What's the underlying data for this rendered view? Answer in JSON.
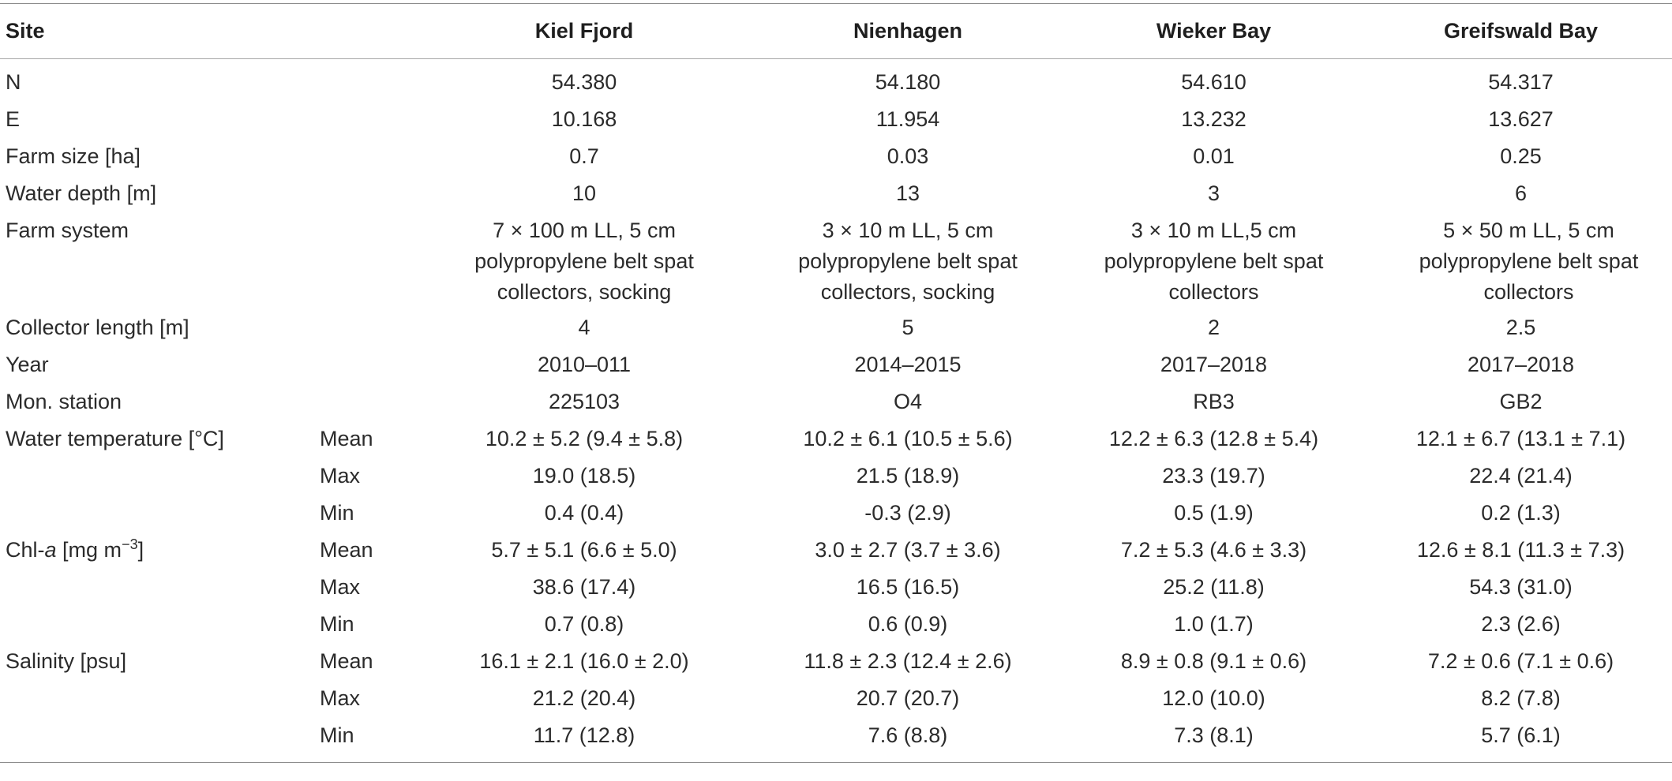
{
  "table": {
    "headers": {
      "site": "Site",
      "stat": "",
      "kiel": "Kiel Fjord",
      "nienhagen": "Nienhagen",
      "wieker": "Wieker Bay",
      "greifswald": "Greifswald Bay"
    },
    "rows": {
      "n": {
        "label": "N",
        "kiel": "54.380",
        "nienhagen": "54.180",
        "wieker": "54.610",
        "greifswald": "54.317"
      },
      "e": {
        "label": "E",
        "kiel": "10.168",
        "nienhagen": "11.954",
        "wieker": "13.232",
        "greifswald": "13.627"
      },
      "farm_size": {
        "label": "Farm size [ha]",
        "kiel": "0.7",
        "nienhagen": "0.03",
        "wieker": "0.01",
        "greifswald": "0.25"
      },
      "water_depth": {
        "label": "Water depth [m]",
        "kiel": "10",
        "nienhagen": "13",
        "wieker": "3",
        "greifswald": "6"
      },
      "farm_system": {
        "label": "Farm system",
        "kiel": "7 × 100 m LL, 5 cm polypropylene belt spat collectors, socking",
        "nienhagen": "3 × 10 m LL, 5 cm polypropylene belt spat collectors, socking",
        "wieker": "3 × 10 m LL,5 cm polypropylene belt spat collectors",
        "greifswald": "5 × 50 m LL, 5 cm polypropylene belt spat collectors"
      },
      "collector_length": {
        "label": "Collector length [m]",
        "kiel": "4",
        "nienhagen": "5",
        "wieker": "2",
        "greifswald": "2.5"
      },
      "year": {
        "label": "Year",
        "kiel": "2010–011",
        "nienhagen": "2014–2015",
        "wieker": "2017–2018",
        "greifswald": "2017–2018"
      },
      "mon_station": {
        "label": "Mon. station",
        "kiel": "225103",
        "nienhagen": "O4",
        "wieker": "RB3",
        "greifswald": "GB2"
      },
      "water_temp": {
        "label": "Water temperature [°C]",
        "mean": {
          "stat": "Mean",
          "kiel": "10.2 ± 5.2 (9.4 ± 5.8)",
          "nienhagen": "10.2 ± 6.1 (10.5 ± 5.6)",
          "wieker": "12.2 ± 6.3 (12.8 ± 5.4)",
          "greifswald": "12.1 ± 6.7 (13.1 ± 7.1)"
        },
        "max": {
          "stat": "Max",
          "kiel": "19.0 (18.5)",
          "nienhagen": "21.5 (18.9)",
          "wieker": "23.3 (19.7)",
          "greifswald": "22.4 (21.4)"
        },
        "min": {
          "stat": "Min",
          "kiel": "0.4 (0.4)",
          "nienhagen": "-0.3 (2.9)",
          "wieker": "0.5 (1.9)",
          "greifswald": "0.2 (1.3)"
        }
      },
      "chla": {
        "label_prefix": "Chl-",
        "label_italic": "a",
        "label_unit": " [mg m",
        "label_exp": "−3",
        "label_close": "]",
        "mean": {
          "stat": "Mean",
          "kiel": "5.7 ± 5.1 (6.6 ± 5.0)",
          "nienhagen": "3.0 ± 2.7 (3.7 ± 3.6)",
          "wieker": "7.2 ± 5.3 (4.6 ± 3.3)",
          "greifswald": "12.6 ± 8.1 (11.3 ± 7.3)"
        },
        "max": {
          "stat": "Max",
          "kiel": "38.6 (17.4)",
          "nienhagen": "16.5 (16.5)",
          "wieker": "25.2 (11.8)",
          "greifswald": "54.3 (31.0)"
        },
        "min": {
          "stat": "Min",
          "kiel": "0.7 (0.8)",
          "nienhagen": "0.6 (0.9)",
          "wieker": "1.0 (1.7)",
          "greifswald": "2.3 (2.6)"
        }
      },
      "salinity": {
        "label": "Salinity [psu]",
        "mean": {
          "stat": "Mean",
          "kiel": "16.1 ± 2.1 (16.0 ± 2.0)",
          "nienhagen": "11.8 ± 2.3 (12.4 ± 2.6)",
          "wieker": "8.9 ± 0.8 (9.1 ± 0.6)",
          "greifswald": "7.2 ± 0.6 (7.1 ± 0.6)"
        },
        "max": {
          "stat": "Max",
          "kiel": "21.2 (20.4)",
          "nienhagen": "20.7 (20.7)",
          "wieker": "12.0 (10.0)",
          "greifswald": "8.2 (7.8)"
        },
        "min": {
          "stat": "Min",
          "kiel": "11.7 (12.8)",
          "nienhagen": "7.6 (8.8)",
          "wieker": "7.3 (8.1)",
          "greifswald": "5.7 (6.1)"
        }
      }
    }
  }
}
